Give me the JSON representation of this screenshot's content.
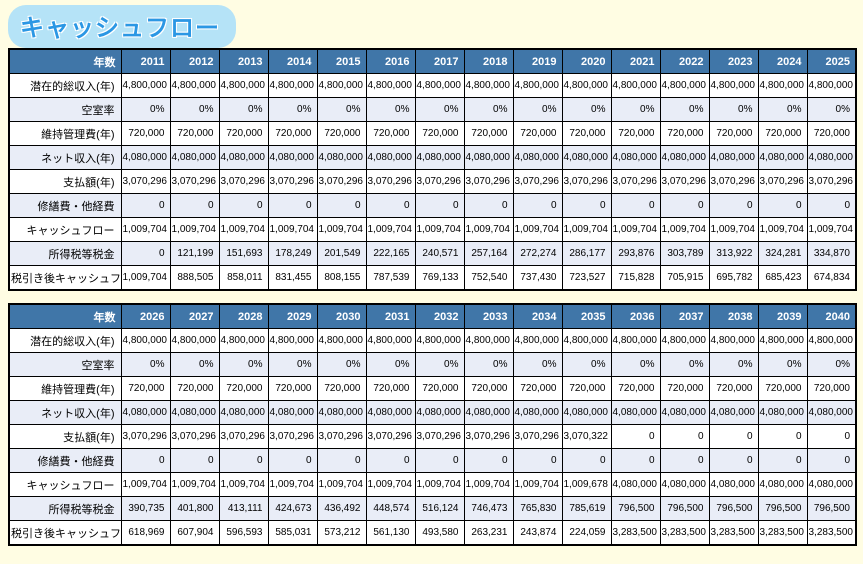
{
  "page": {
    "title": "キャッシュフロー"
  },
  "colors": {
    "page_background": "#FFFDE3",
    "title_text": "#2B97E4",
    "title_bubble": "#B5E3F7",
    "header_background": "#4076A8",
    "header_text": "#FFFFFF",
    "stripe_row": "#E9EDF7",
    "cell_border": "#000000"
  },
  "tables": [
    {
      "header_label": "年数",
      "years": [
        "2011",
        "2012",
        "2013",
        "2014",
        "2015",
        "2016",
        "2017",
        "2018",
        "2019",
        "2020",
        "2021",
        "2022",
        "2023",
        "2024",
        "2025"
      ],
      "rows": [
        {
          "label": "潜在的総収入(年)",
          "values": [
            "4,800,000",
            "4,800,000",
            "4,800,000",
            "4,800,000",
            "4,800,000",
            "4,800,000",
            "4,800,000",
            "4,800,000",
            "4,800,000",
            "4,800,000",
            "4,800,000",
            "4,800,000",
            "4,800,000",
            "4,800,000",
            "4,800,000"
          ]
        },
        {
          "label": "空室率",
          "values": [
            "0%",
            "0%",
            "0%",
            "0%",
            "0%",
            "0%",
            "0%",
            "0%",
            "0%",
            "0%",
            "0%",
            "0%",
            "0%",
            "0%",
            "0%"
          ]
        },
        {
          "label": "維持管理費(年)",
          "values": [
            "720,000",
            "720,000",
            "720,000",
            "720,000",
            "720,000",
            "720,000",
            "720,000",
            "720,000",
            "720,000",
            "720,000",
            "720,000",
            "720,000",
            "720,000",
            "720,000",
            "720,000"
          ]
        },
        {
          "label": "ネット収入(年)",
          "values": [
            "4,080,000",
            "4,080,000",
            "4,080,000",
            "4,080,000",
            "4,080,000",
            "4,080,000",
            "4,080,000",
            "4,080,000",
            "4,080,000",
            "4,080,000",
            "4,080,000",
            "4,080,000",
            "4,080,000",
            "4,080,000",
            "4,080,000"
          ]
        },
        {
          "label": "支払額(年)",
          "values": [
            "3,070,296",
            "3,070,296",
            "3,070,296",
            "3,070,296",
            "3,070,296",
            "3,070,296",
            "3,070,296",
            "3,070,296",
            "3,070,296",
            "3,070,296",
            "3,070,296",
            "3,070,296",
            "3,070,296",
            "3,070,296",
            "3,070,296"
          ]
        },
        {
          "label": "修繕費・他経費",
          "values": [
            "0",
            "0",
            "0",
            "0",
            "0",
            "0",
            "0",
            "0",
            "0",
            "0",
            "0",
            "0",
            "0",
            "0",
            "0"
          ]
        },
        {
          "label": "キャッシュフロー",
          "values": [
            "1,009,704",
            "1,009,704",
            "1,009,704",
            "1,009,704",
            "1,009,704",
            "1,009,704",
            "1,009,704",
            "1,009,704",
            "1,009,704",
            "1,009,704",
            "1,009,704",
            "1,009,704",
            "1,009,704",
            "1,009,704",
            "1,009,704"
          ]
        },
        {
          "label": "所得税等税金",
          "values": [
            "0",
            "121,199",
            "151,693",
            "178,249",
            "201,549",
            "222,165",
            "240,571",
            "257,164",
            "272,274",
            "286,177",
            "293,876",
            "303,789",
            "313,922",
            "324,281",
            "334,870"
          ]
        },
        {
          "label": "税引き後キャッシュフロー",
          "values": [
            "1,009,704",
            "888,505",
            "858,011",
            "831,455",
            "808,155",
            "787,539",
            "769,133",
            "752,540",
            "737,430",
            "723,527",
            "715,828",
            "705,915",
            "695,782",
            "685,423",
            "674,834"
          ]
        }
      ]
    },
    {
      "header_label": "年数",
      "years": [
        "2026",
        "2027",
        "2028",
        "2029",
        "2030",
        "2031",
        "2032",
        "2033",
        "2034",
        "2035",
        "2036",
        "2037",
        "2038",
        "2039",
        "2040"
      ],
      "rows": [
        {
          "label": "潜在的総収入(年)",
          "values": [
            "4,800,000",
            "4,800,000",
            "4,800,000",
            "4,800,000",
            "4,800,000",
            "4,800,000",
            "4,800,000",
            "4,800,000",
            "4,800,000",
            "4,800,000",
            "4,800,000",
            "4,800,000",
            "4,800,000",
            "4,800,000",
            "4,800,000"
          ]
        },
        {
          "label": "空室率",
          "values": [
            "0%",
            "0%",
            "0%",
            "0%",
            "0%",
            "0%",
            "0%",
            "0%",
            "0%",
            "0%",
            "0%",
            "0%",
            "0%",
            "0%",
            "0%"
          ]
        },
        {
          "label": "維持管理費(年)",
          "values": [
            "720,000",
            "720,000",
            "720,000",
            "720,000",
            "720,000",
            "720,000",
            "720,000",
            "720,000",
            "720,000",
            "720,000",
            "720,000",
            "720,000",
            "720,000",
            "720,000",
            "720,000"
          ]
        },
        {
          "label": "ネット収入(年)",
          "values": [
            "4,080,000",
            "4,080,000",
            "4,080,000",
            "4,080,000",
            "4,080,000",
            "4,080,000",
            "4,080,000",
            "4,080,000",
            "4,080,000",
            "4,080,000",
            "4,080,000",
            "4,080,000",
            "4,080,000",
            "4,080,000",
            "4,080,000"
          ]
        },
        {
          "label": "支払額(年)",
          "values": [
            "3,070,296",
            "3,070,296",
            "3,070,296",
            "3,070,296",
            "3,070,296",
            "3,070,296",
            "3,070,296",
            "3,070,296",
            "3,070,296",
            "3,070,322",
            "0",
            "0",
            "0",
            "0",
            "0"
          ]
        },
        {
          "label": "修繕費・他経費",
          "values": [
            "0",
            "0",
            "0",
            "0",
            "0",
            "0",
            "0",
            "0",
            "0",
            "0",
            "0",
            "0",
            "0",
            "0",
            "0"
          ]
        },
        {
          "label": "キャッシュフロー",
          "values": [
            "1,009,704",
            "1,009,704",
            "1,009,704",
            "1,009,704",
            "1,009,704",
            "1,009,704",
            "1,009,704",
            "1,009,704",
            "1,009,704",
            "1,009,678",
            "4,080,000",
            "4,080,000",
            "4,080,000",
            "4,080,000",
            "4,080,000"
          ]
        },
        {
          "label": "所得税等税金",
          "values": [
            "390,735",
            "401,800",
            "413,111",
            "424,673",
            "436,492",
            "448,574",
            "516,124",
            "746,473",
            "765,830",
            "785,619",
            "796,500",
            "796,500",
            "796,500",
            "796,500",
            "796,500"
          ]
        },
        {
          "label": "税引き後キャッシュフロー",
          "values": [
            "618,969",
            "607,904",
            "596,593",
            "585,031",
            "573,212",
            "561,130",
            "493,580",
            "263,231",
            "243,874",
            "224,059",
            "3,283,500",
            "3,283,500",
            "3,283,500",
            "3,283,500",
            "3,283,500"
          ]
        }
      ]
    }
  ]
}
